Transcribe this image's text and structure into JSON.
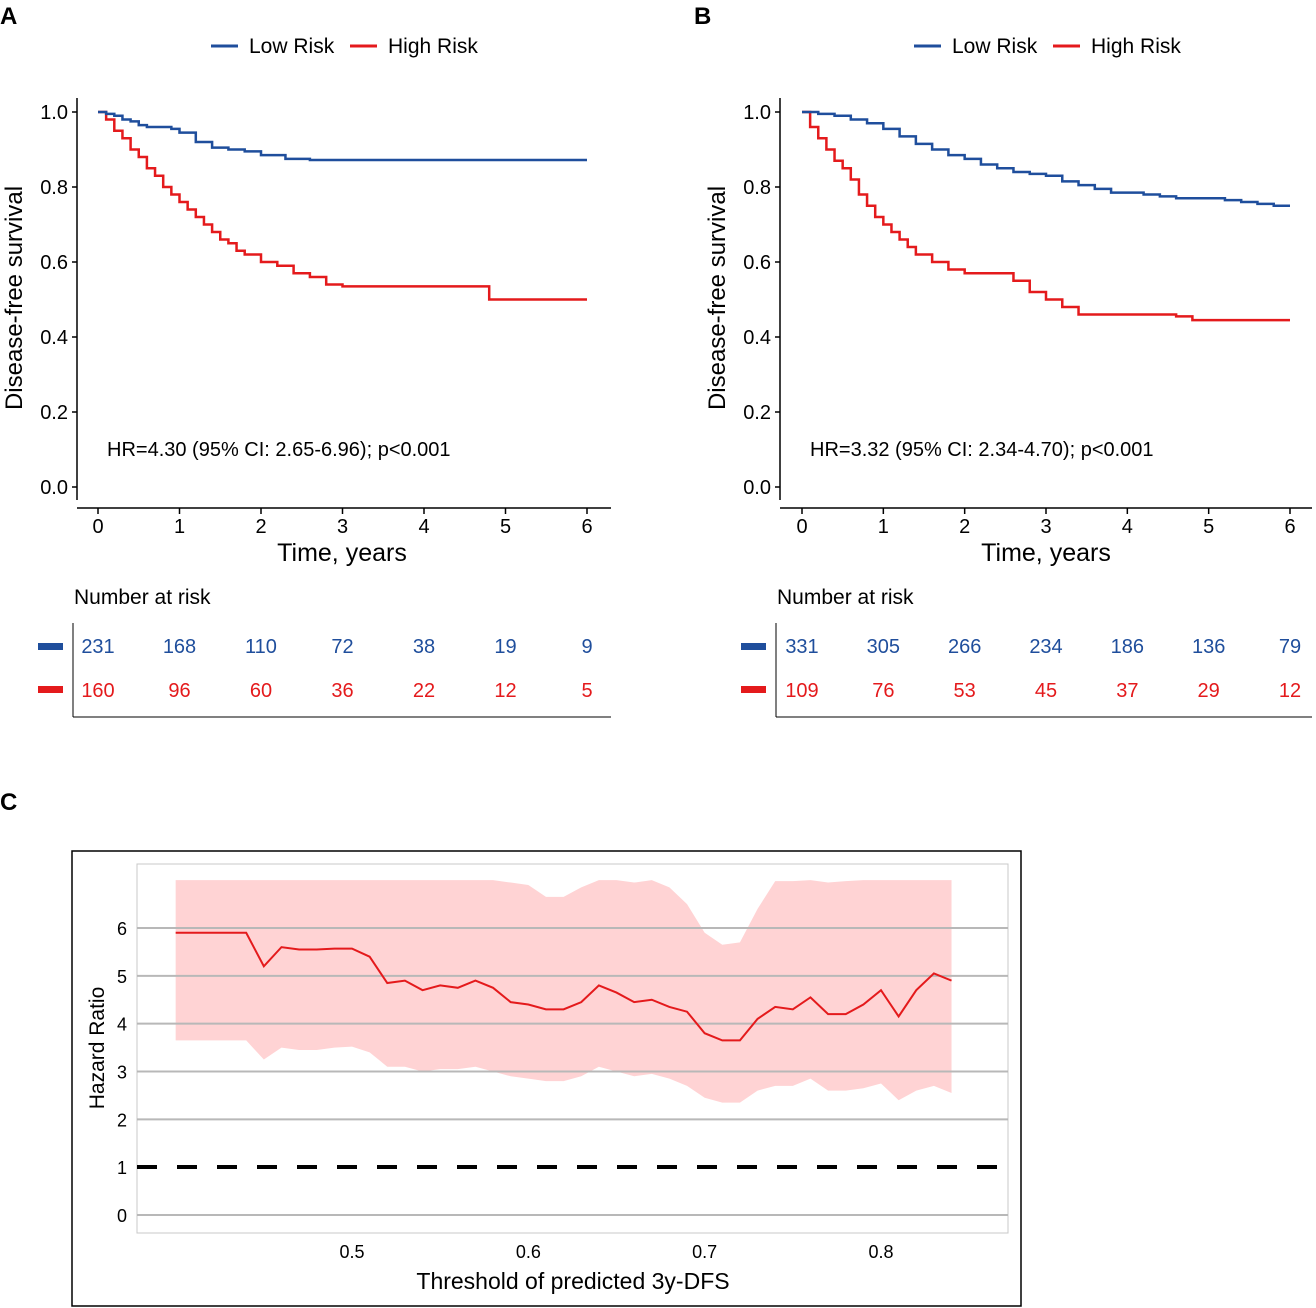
{
  "panels": {
    "A": {
      "letter": "A",
      "legend": [
        "Low Risk",
        "High Risk"
      ],
      "xlabel": "Time, years",
      "ylabel": "Disease-free survival",
      "x_ticks": [
        "0",
        "1",
        "2",
        "3",
        "4",
        "5",
        "6"
      ],
      "y_ticks": [
        "0.0",
        "0.2",
        "0.4",
        "0.6",
        "0.8",
        "1.0"
      ],
      "annotation": "HR=4.30 (95% CI: 2.65-6.96);  p<0.001",
      "risk_table_title": "Number at risk",
      "risk_low": [
        "231",
        "168",
        "110",
        "72",
        "38",
        "19",
        "9"
      ],
      "risk_high": [
        "160",
        "96",
        "60",
        "36",
        "22",
        "12",
        "5"
      ]
    },
    "B": {
      "letter": "B",
      "legend": [
        "Low Risk",
        "High Risk"
      ],
      "xlabel": "Time, years",
      "ylabel": "Disease-free survival",
      "x_ticks": [
        "0",
        "1",
        "2",
        "3",
        "4",
        "5",
        "6"
      ],
      "y_ticks": [
        "0.0",
        "0.2",
        "0.4",
        "0.6",
        "0.8",
        "1.0"
      ],
      "annotation": "HR=3.32 (95% CI: 2.34-4.70);  p<0.001",
      "risk_table_title": "Number at risk",
      "risk_low": [
        "331",
        "305",
        "266",
        "234",
        "186",
        "136",
        "79"
      ],
      "risk_high": [
        "109",
        "76",
        "53",
        "45",
        "37",
        "29",
        "12"
      ]
    },
    "C": {
      "letter": "C",
      "xlabel": "Threshold of predicted 3y-DFS",
      "ylabel": "Hazard Ratio",
      "x_ticks": [
        "0.5",
        "0.6",
        "0.7",
        "0.8"
      ],
      "y_ticks": [
        "0",
        "1",
        "2",
        "3",
        "4",
        "5",
        "6"
      ]
    }
  },
  "chart_data": [
    {
      "panel": "A",
      "type": "line",
      "title": "",
      "xlabel": "Time, years",
      "ylabel": "Disease-free survival",
      "xlim": [
        0,
        6
      ],
      "ylim": [
        0,
        1
      ],
      "series": [
        {
          "name": "Low Risk",
          "color": "#1F4E9C",
          "x": [
            0,
            0.1,
            0.2,
            0.3,
            0.4,
            0.5,
            0.6,
            0.8,
            0.9,
            1.0,
            1.2,
            1.4,
            1.6,
            1.8,
            2.0,
            2.3,
            2.6,
            3.0,
            6.0
          ],
          "y": [
            1.0,
            0.995,
            0.99,
            0.98,
            0.975,
            0.965,
            0.96,
            0.96,
            0.955,
            0.945,
            0.92,
            0.905,
            0.9,
            0.895,
            0.885,
            0.875,
            0.872,
            0.872,
            0.872
          ]
        },
        {
          "name": "High Risk",
          "color": "#E41A1C",
          "x": [
            0,
            0.1,
            0.2,
            0.3,
            0.4,
            0.5,
            0.6,
            0.7,
            0.8,
            0.9,
            1.0,
            1.1,
            1.2,
            1.3,
            1.4,
            1.5,
            1.6,
            1.7,
            1.8,
            2.0,
            2.2,
            2.4,
            2.6,
            2.8,
            3.0,
            3.5,
            4.0,
            4.5,
            4.8,
            6.0
          ],
          "y": [
            1.0,
            0.98,
            0.95,
            0.93,
            0.9,
            0.88,
            0.85,
            0.83,
            0.8,
            0.78,
            0.76,
            0.74,
            0.72,
            0.7,
            0.68,
            0.66,
            0.65,
            0.63,
            0.62,
            0.6,
            0.59,
            0.57,
            0.56,
            0.54,
            0.535,
            0.535,
            0.535,
            0.535,
            0.5,
            0.5
          ]
        }
      ],
      "annotations": [
        "HR=4.30 (95% CI: 2.65-6.96);  p<0.001"
      ],
      "legend": "top",
      "risk_table": {
        "times": [
          0,
          1,
          2,
          3,
          4,
          5,
          6
        ],
        "Low Risk": [
          231,
          168,
          110,
          72,
          38,
          19,
          9
        ],
        "High Risk": [
          160,
          96,
          60,
          36,
          22,
          12,
          5
        ]
      }
    },
    {
      "panel": "B",
      "type": "line",
      "title": "",
      "xlabel": "Time, years",
      "ylabel": "Disease-free survival",
      "xlim": [
        0,
        6
      ],
      "ylim": [
        0,
        1
      ],
      "series": [
        {
          "name": "Low Risk",
          "color": "#1F4E9C",
          "x": [
            0,
            0.2,
            0.4,
            0.6,
            0.8,
            1.0,
            1.2,
            1.4,
            1.6,
            1.8,
            2.0,
            2.2,
            2.4,
            2.6,
            2.8,
            3.0,
            3.2,
            3.4,
            3.6,
            3.8,
            4.0,
            4.2,
            4.4,
            4.6,
            4.8,
            5.0,
            5.2,
            5.4,
            5.6,
            5.8,
            6.0
          ],
          "y": [
            1.0,
            0.995,
            0.99,
            0.98,
            0.97,
            0.955,
            0.935,
            0.915,
            0.9,
            0.885,
            0.875,
            0.86,
            0.85,
            0.84,
            0.835,
            0.83,
            0.815,
            0.805,
            0.795,
            0.785,
            0.785,
            0.78,
            0.775,
            0.77,
            0.77,
            0.77,
            0.765,
            0.76,
            0.755,
            0.75,
            0.75
          ]
        },
        {
          "name": "High Risk",
          "color": "#E41A1C",
          "x": [
            0,
            0.1,
            0.2,
            0.3,
            0.4,
            0.5,
            0.6,
            0.7,
            0.8,
            0.9,
            1.0,
            1.1,
            1.2,
            1.3,
            1.4,
            1.6,
            1.8,
            2.0,
            2.4,
            2.6,
            2.8,
            3.0,
            3.2,
            3.4,
            3.8,
            4.2,
            4.6,
            4.8,
            6.0
          ],
          "y": [
            1.0,
            0.96,
            0.93,
            0.9,
            0.87,
            0.85,
            0.82,
            0.78,
            0.75,
            0.72,
            0.7,
            0.68,
            0.66,
            0.64,
            0.62,
            0.6,
            0.58,
            0.57,
            0.57,
            0.55,
            0.52,
            0.5,
            0.48,
            0.46,
            0.46,
            0.46,
            0.455,
            0.445,
            0.445
          ]
        }
      ],
      "annotations": [
        "HR=3.32 (95% CI: 2.34-4.70);  p<0.001"
      ],
      "legend": "top",
      "risk_table": {
        "times": [
          0,
          1,
          2,
          3,
          4,
          5,
          6
        ],
        "Low Risk": [
          331,
          305,
          266,
          234,
          186,
          136,
          79
        ],
        "High Risk": [
          109,
          76,
          53,
          45,
          37,
          29,
          12
        ]
      }
    },
    {
      "panel": "C",
      "type": "line",
      "title": "",
      "xlabel": "Threshold of predicted 3y-DFS",
      "ylabel": "Hazard Ratio",
      "xlim": [
        0.38,
        0.87
      ],
      "ylim": [
        -0.2,
        7.2
      ],
      "reference_line": 1,
      "series": [
        {
          "name": "Hazard Ratio",
          "color": "#E41A1C",
          "x": [
            0.4,
            0.41,
            0.42,
            0.43,
            0.44,
            0.45,
            0.46,
            0.47,
            0.48,
            0.49,
            0.5,
            0.51,
            0.52,
            0.53,
            0.54,
            0.55,
            0.56,
            0.57,
            0.58,
            0.59,
            0.6,
            0.61,
            0.62,
            0.63,
            0.64,
            0.65,
            0.66,
            0.67,
            0.68,
            0.69,
            0.7,
            0.71,
            0.72,
            0.73,
            0.74,
            0.75,
            0.76,
            0.77,
            0.78,
            0.79,
            0.8,
            0.81,
            0.82,
            0.83,
            0.84
          ],
          "y": [
            5.9,
            5.9,
            5.9,
            5.9,
            5.9,
            5.2,
            5.6,
            5.55,
            5.55,
            5.57,
            5.57,
            5.4,
            4.85,
            4.9,
            4.7,
            4.8,
            4.75,
            4.9,
            4.75,
            4.45,
            4.4,
            4.3,
            4.3,
            4.45,
            4.8,
            4.65,
            4.45,
            4.5,
            4.35,
            4.25,
            3.8,
            3.65,
            3.65,
            4.1,
            4.35,
            4.3,
            4.55,
            4.2,
            4.2,
            4.4,
            4.7,
            4.15,
            4.7,
            5.05,
            4.9
          ]
        },
        {
          "name": "95% CI upper",
          "color": "#FFD3D4",
          "x": [
            0.4,
            0.41,
            0.42,
            0.43,
            0.44,
            0.45,
            0.46,
            0.47,
            0.48,
            0.49,
            0.5,
            0.51,
            0.52,
            0.53,
            0.54,
            0.55,
            0.56,
            0.57,
            0.58,
            0.59,
            0.6,
            0.61,
            0.62,
            0.63,
            0.64,
            0.65,
            0.66,
            0.67,
            0.68,
            0.69,
            0.7,
            0.71,
            0.72,
            0.73,
            0.74,
            0.75,
            0.76,
            0.77,
            0.78,
            0.79,
            0.8,
            0.81,
            0.82,
            0.83,
            0.84
          ],
          "y": [
            7.0,
            7.0,
            7.0,
            7.0,
            7.0,
            7.0,
            7.0,
            7.0,
            7.0,
            7.0,
            7.0,
            7.0,
            7.0,
            7.0,
            7.0,
            7.0,
            7.0,
            7.0,
            7.0,
            6.95,
            6.9,
            6.65,
            6.65,
            6.85,
            7.0,
            7.0,
            6.95,
            7.0,
            6.85,
            6.5,
            5.9,
            5.65,
            5.7,
            6.4,
            6.98,
            6.98,
            7.0,
            6.95,
            6.98,
            7.0,
            7.0,
            7.0,
            7.0,
            7.0,
            7.0
          ]
        },
        {
          "name": "95% CI lower",
          "color": "#FFD3D4",
          "x": [
            0.4,
            0.41,
            0.42,
            0.43,
            0.44,
            0.45,
            0.46,
            0.47,
            0.48,
            0.49,
            0.5,
            0.51,
            0.52,
            0.53,
            0.54,
            0.55,
            0.56,
            0.57,
            0.58,
            0.59,
            0.6,
            0.61,
            0.62,
            0.63,
            0.64,
            0.65,
            0.66,
            0.67,
            0.68,
            0.69,
            0.7,
            0.71,
            0.72,
            0.73,
            0.74,
            0.75,
            0.76,
            0.77,
            0.78,
            0.79,
            0.8,
            0.81,
            0.82,
            0.83,
            0.84
          ],
          "y": [
            3.65,
            3.65,
            3.65,
            3.65,
            3.65,
            3.25,
            3.5,
            3.45,
            3.45,
            3.5,
            3.52,
            3.4,
            3.1,
            3.1,
            3.0,
            3.05,
            3.05,
            3.1,
            3.0,
            2.9,
            2.85,
            2.8,
            2.8,
            2.9,
            3.1,
            3.0,
            2.9,
            2.95,
            2.85,
            2.7,
            2.45,
            2.35,
            2.35,
            2.6,
            2.7,
            2.7,
            2.85,
            2.6,
            2.6,
            2.65,
            2.75,
            2.4,
            2.6,
            2.7,
            2.55
          ]
        }
      ],
      "legend": "none"
    }
  ]
}
